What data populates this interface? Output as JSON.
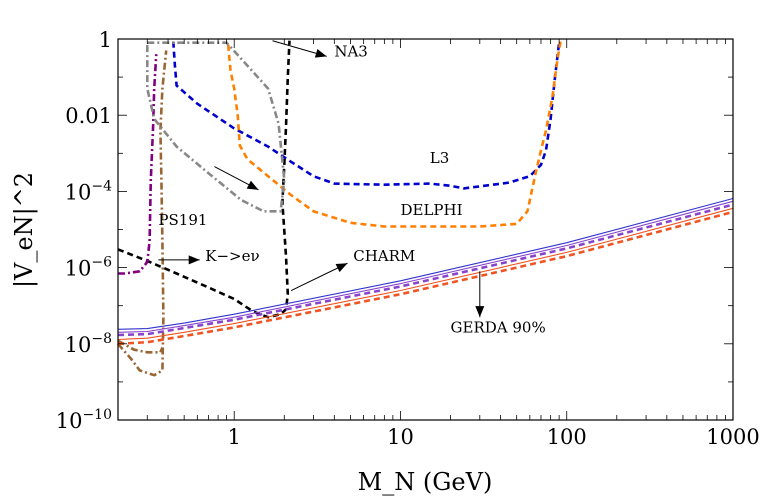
{
  "chart_data": {
    "type": "line",
    "xlabel": "M_N  (GeV)",
    "ylabel": "|V_eN|^2",
    "x_scale": "log",
    "y_scale": "log",
    "xlim": [
      0.2,
      1000
    ],
    "ylim": [
      1e-10,
      1
    ],
    "grid": false,
    "x_ticks": [
      {
        "value": 1,
        "label": "1"
      },
      {
        "value": 10,
        "label": "10"
      },
      {
        "value": 100,
        "label": "100"
      },
      {
        "value": 1000,
        "label": "1000"
      }
    ],
    "y_ticks": [
      {
        "value": 1e-10,
        "base": "10",
        "exp": "−10"
      },
      {
        "value": 1e-08,
        "base": "10",
        "exp": "−8"
      },
      {
        "value": 1e-06,
        "base": "10",
        "exp": "−6"
      },
      {
        "value": 0.0001,
        "base": "10",
        "exp": "−4"
      },
      {
        "value": 0.01,
        "base": "0.01",
        "exp": ""
      },
      {
        "value": 1,
        "base": "1",
        "exp": ""
      }
    ],
    "series": [
      {
        "color": "#0000cc",
        "dash": "dashed",
        "points": [
          [
            0.43,
            0.85
          ],
          [
            0.44,
            0.2
          ],
          [
            0.45,
            0.06
          ],
          [
            0.6,
            0.02
          ],
          [
            1.0,
            0.0045
          ],
          [
            1.6,
            0.0015
          ],
          [
            2.2,
            0.0006
          ],
          [
            3.0,
            0.00025
          ],
          [
            4.0,
            0.00016
          ],
          [
            8.0,
            0.00015
          ],
          [
            15,
            0.00016
          ],
          [
            20,
            0.00014
          ],
          [
            24,
            0.00012
          ],
          [
            30,
            0.000135
          ],
          [
            45,
            0.00017
          ],
          [
            60,
            0.00025
          ],
          [
            70,
            0.0005
          ],
          [
            75,
            0.0012
          ],
          [
            80,
            0.008
          ],
          [
            85,
            0.1
          ],
          [
            90,
            0.8
          ]
        ]
      },
      {
        "color": "#ff8000",
        "dash": "dashed",
        "points": [
          [
            0.92,
            0.7
          ],
          [
            0.95,
            0.15
          ],
          [
            1.0,
            0.05
          ],
          [
            1.05,
            0.01
          ],
          [
            1.08,
            0.0016
          ],
          [
            1.2,
            0.0007
          ],
          [
            1.6,
            0.00025
          ],
          [
            2.2,
            8e-05
          ],
          [
            3.0,
            3e-05
          ],
          [
            5.0,
            1.5e-05
          ],
          [
            8.0,
            1.2e-05
          ],
          [
            15,
            1.2e-05
          ],
          [
            30,
            1.2e-05
          ],
          [
            50,
            1.4e-05
          ],
          [
            58,
            3e-05
          ],
          [
            65,
            0.0003
          ],
          [
            70,
            0.0012
          ],
          [
            75,
            0.004
          ],
          [
            82,
            0.03
          ],
          [
            88,
            0.3
          ],
          [
            92,
            0.9
          ]
        ]
      },
      {
        "color": "#000000",
        "dash": "dashed",
        "points": [
          [
            0.2,
            3e-06
          ],
          [
            0.3,
            1.5e-06
          ],
          [
            0.45,
            7e-07
          ],
          [
            0.7,
            3e-07
          ],
          [
            1.0,
            1.5e-07
          ],
          [
            1.3,
            7e-08
          ],
          [
            1.6,
            5e-08
          ],
          [
            1.9,
            6e-08
          ],
          [
            2.05,
            8e-08
          ],
          [
            2.1,
            2e-07
          ],
          [
            2.05,
            2e-06
          ],
          [
            1.95,
            5e-05
          ],
          [
            2.0,
            0.0005
          ],
          [
            2.05,
            0.005
          ],
          [
            2.1,
            0.1
          ],
          [
            2.15,
            0.9
          ]
        ]
      },
      {
        "color": "#800080",
        "dash": "dashdot",
        "points": [
          [
            0.2,
            7e-07
          ],
          [
            0.22,
            7e-07
          ],
          [
            0.27,
            8e-07
          ],
          [
            0.3,
            1.4e-06
          ],
          [
            0.31,
            5e-06
          ],
          [
            0.315,
            0.0002
          ],
          [
            0.325,
            0.005
          ],
          [
            0.33,
            0.05
          ],
          [
            0.34,
            0.4
          ]
        ]
      },
      {
        "color": "#996633",
        "dash": "dashdot",
        "points": [
          [
            0.2,
            1e-08
          ],
          [
            0.24,
            4e-09
          ],
          [
            0.27,
            2e-09
          ],
          [
            0.33,
            1.5e-09
          ],
          [
            0.37,
            2e-09
          ],
          [
            0.375,
            5e-08
          ],
          [
            0.37,
            5e-06
          ],
          [
            0.365,
            0.0002
          ],
          [
            0.36,
            0.004
          ],
          [
            0.37,
            0.05
          ],
          [
            0.39,
            0.5
          ]
        ]
      },
      {
        "color": "#996633",
        "dash": "dashdot",
        "points": [
          [
            0.2,
            1.2e-08
          ],
          [
            0.25,
            7e-09
          ],
          [
            0.3,
            6e-09
          ],
          [
            0.36,
            6e-09
          ],
          [
            0.37,
            8e-09
          ]
        ]
      },
      {
        "color": "#888888",
        "dash": "dashdot",
        "points": [
          [
            0.3,
            0.8
          ],
          [
            0.6,
            0.8
          ],
          [
            0.9,
            0.8
          ],
          [
            1.2,
            0.2
          ],
          [
            1.6,
            0.05
          ],
          [
            1.85,
            0.006
          ],
          [
            2.0,
            0.0002
          ],
          [
            1.9,
            3e-05
          ],
          [
            1.5,
            3e-05
          ],
          [
            1.1,
            6e-05
          ],
          [
            0.7,
            0.0003
          ],
          [
            0.45,
            0.0015
          ],
          [
            0.33,
            0.008
          ],
          [
            0.3,
            0.05
          ],
          [
            0.3,
            0.8
          ]
        ]
      },
      {
        "color": "#3333cc",
        "dash": "solid",
        "points": [
          [
            0.2,
            2.4e-08
          ],
          [
            0.3,
            2.5e-08
          ],
          [
            0.5,
            3.5e-08
          ],
          [
            1,
            6e-08
          ],
          [
            10,
            4.5e-07
          ],
          [
            100,
            4.5e-06
          ],
          [
            1000,
            6.5e-05
          ]
        ]
      },
      {
        "color": "#8844cc",
        "dash": "solid",
        "points": [
          [
            0.2,
            2e-08
          ],
          [
            0.3,
            2.1e-08
          ],
          [
            0.5,
            3e-08
          ],
          [
            1,
            5e-08
          ],
          [
            10,
            3.8e-07
          ],
          [
            100,
            3.8e-06
          ],
          [
            1000,
            5.5e-05
          ]
        ]
      },
      {
        "color": "#8844cc",
        "dash": "dashed",
        "points": [
          [
            0.2,
            1.7e-08
          ],
          [
            0.3,
            1.8e-08
          ],
          [
            0.5,
            2.6e-08
          ],
          [
            1,
            4.3e-08
          ],
          [
            10,
            3.2e-07
          ],
          [
            100,
            3.2e-06
          ],
          [
            1000,
            4.5e-05
          ]
        ]
      },
      {
        "color": "#ee5522",
        "dash": "solid",
        "points": [
          [
            0.2,
            1.3e-08
          ],
          [
            0.3,
            1.4e-08
          ],
          [
            0.5,
            2e-08
          ],
          [
            1,
            3.4e-08
          ],
          [
            10,
            2.5e-07
          ],
          [
            100,
            2.5e-06
          ],
          [
            1000,
            3.6e-05
          ]
        ]
      },
      {
        "color": "#ee5522",
        "dash": "dashed",
        "points": [
          [
            0.2,
            1e-08
          ],
          [
            0.3,
            1.1e-08
          ],
          [
            0.5,
            1.6e-08
          ],
          [
            1,
            2.7e-08
          ],
          [
            10,
            2e-07
          ],
          [
            100,
            2e-06
          ],
          [
            1000,
            2.9e-05
          ]
        ]
      }
    ],
    "annotations": [
      {
        "text": "NA3",
        "x": 4.0,
        "y": 0.35
      },
      {
        "text": "L3",
        "x": 15,
        "y": 0.00055
      },
      {
        "text": "DELPHI",
        "x": 10,
        "y": 2.4e-05
      },
      {
        "text": "PS191",
        "x": 0.35,
        "y": 1.3e-05
      },
      {
        "text": "K−>eν",
        "x": 0.67,
        "y": 1.5e-06
      },
      {
        "text": "CHARM",
        "x": 5.2,
        "y": 1.5e-06
      },
      {
        "text": "GERDA 90%",
        "x": 20,
        "y": 2e-08
      }
    ],
    "arrows": [
      {
        "from": [
          1.7,
          0.9
        ],
        "to": [
          3.6,
          0.35
        ]
      },
      {
        "from": [
          0.76,
          0.00045
        ],
        "to": [
          1.4,
          0.00011
        ]
      },
      {
        "from": [
          0.35,
          1.6e-06
        ],
        "to": [
          0.62,
          1.6e-06
        ]
      },
      {
        "from": [
          2.2,
          2.5e-07
        ],
        "to": [
          4.8,
          1.3e-06
        ]
      },
      {
        "from": [
          30,
          8e-07
        ],
        "to": [
          30,
          5e-08
        ]
      }
    ]
  }
}
